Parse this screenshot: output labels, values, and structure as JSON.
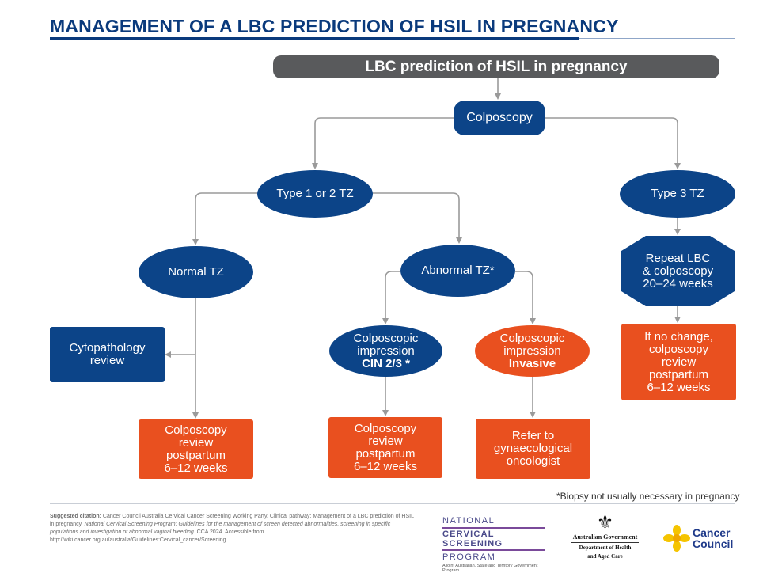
{
  "title": "MANAGEMENT OF A LBC PREDICTION OF HSIL IN PREGNANCY",
  "header": "LBC prediction of HSIL in pregnancy",
  "nodes": {
    "colposcopy": "Colposcopy",
    "type12": "Type 1 or 2 TZ",
    "type3": "Type 3 TZ",
    "normal_tz": "Normal TZ",
    "abnormal_tz": "Abnormal TZ*",
    "cytopathology": [
      "Cytopathology",
      "review"
    ],
    "cin": [
      "Colposcopic",
      "impression",
      "CIN 2/3 *"
    ],
    "invasive": [
      "Colposcopic",
      "impression",
      "Invasive"
    ],
    "repeat_lbc": [
      "Repeat LBC",
      "& colposcopy",
      "20–24 weeks"
    ],
    "no_change": [
      "If no change,",
      "colposcopy",
      "review",
      "postpartum",
      "6–12 weeks"
    ],
    "review_left": [
      "Colposcopy",
      "review",
      "postpartum",
      "6–12 weeks"
    ],
    "review_mid": [
      "Colposcopy",
      "review",
      "postpartum",
      "6–12 weeks"
    ],
    "refer": [
      "Refer to",
      "gynaecological",
      "oncologist"
    ]
  },
  "footnote": "*Biopsy not usually necessary in pregnancy",
  "citation": {
    "label": "Suggested citation:",
    "part1": " Cancer Council Australia Cervical Cancer Screening Working Party. Clinical pathway: Management of a LBC prediction of HSIL in pregnancy. ",
    "italic": "National Cervical Screening Program: Guidelines for the management of screen detected abnormalities, screening in specific populations and investigation of abnormal vaginal bleeding.",
    "part2": " CCA 2024. Accessible from http://wiki.cancer.org.au/australia/Guidelines:Cervical_cancer/Screening"
  },
  "logos": {
    "ncsp": [
      "NATIONAL",
      "CERVICAL SCREENING",
      "PROGRAM",
      "A joint Australian, State and Territory Government Program"
    ],
    "gov": [
      "Australian Government",
      "Department of Health",
      "and Aged Care"
    ],
    "cancer_council": [
      "Cancer",
      "Council"
    ]
  },
  "colors": {
    "navy": "#0c4488",
    "orange": "#e9501f",
    "grey_bar": "#595a5c",
    "connector": "#9a9a9a"
  }
}
